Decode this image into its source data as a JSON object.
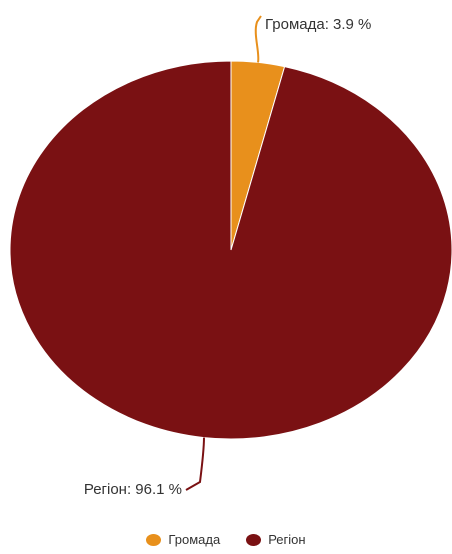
{
  "chart_data": {
    "type": "pie",
    "title": "",
    "slices": [
      {
        "name": "Громада",
        "value": 3.9,
        "label": "Громада: 3.9 %",
        "color": "#E8901C"
      },
      {
        "name": "Регіон",
        "value": 96.1,
        "label": "Регіон: 96.1 %",
        "color": "#7A1113"
      }
    ],
    "legend": {
      "placement": "bottom-center",
      "items": [
        "Громада",
        "Регіон"
      ]
    }
  }
}
